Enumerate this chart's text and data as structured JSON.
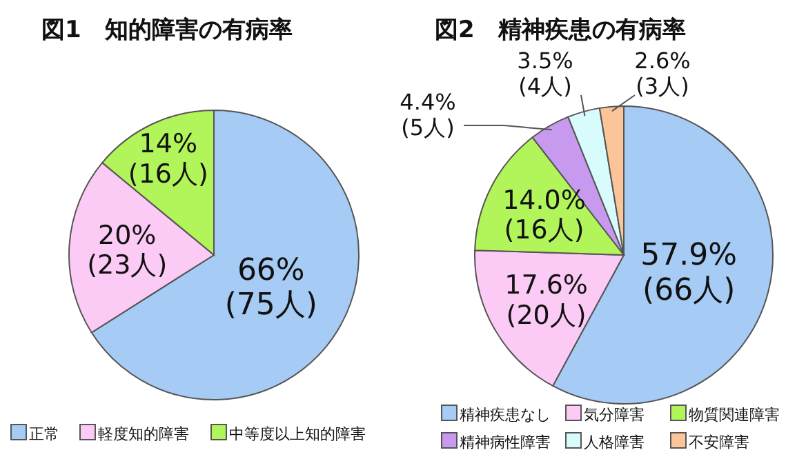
{
  "chart_data": [
    {
      "type": "pie",
      "title": "図1　知的障害の有病率",
      "categories": [
        "正常",
        "軽度知的障害",
        "中等度以上知的障害"
      ],
      "values": [
        66,
        20,
        14
      ],
      "colors": [
        "#a6cbf5",
        "#fccbf5",
        "#b2f55a"
      ],
      "value_labels": [
        "66%\n(75人)",
        "20%\n(23人)",
        "14%\n(16人)"
      ],
      "legend": "bottom"
    },
    {
      "type": "pie",
      "title": "図2　精神疾患の有病率",
      "categories": [
        "精神疾患なし",
        "気分障害",
        "物質関連障害",
        "精神病性障害",
        "人格障害",
        "不安障害"
      ],
      "values": [
        57.9,
        17.6,
        14.0,
        4.4,
        3.5,
        2.6
      ],
      "colors": [
        "#a6cbf5",
        "#fccbf5",
        "#b2f55a",
        "#c79af0",
        "#d8fbfb",
        "#fbc499"
      ],
      "value_labels": [
        "57.9%\n(66人)",
        "17.6%\n(20人)",
        "14.0%\n(16人)",
        "4.4%\n(5人)",
        "3.5%\n(4人)",
        "2.6%\n(3人)"
      ],
      "legend": "bottom"
    }
  ]
}
